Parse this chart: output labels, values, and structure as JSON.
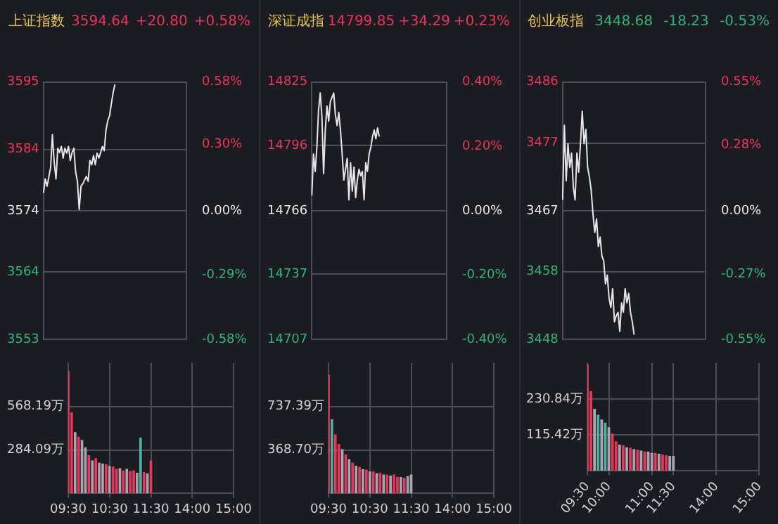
{
  "chart_data": [
    {
      "type": "line",
      "title": "上证指数",
      "annotations": [
        "3594.64",
        "+20.80",
        "+0.58%"
      ],
      "categories": [
        null,
        null,
        null,
        null,
        null,
        null,
        null,
        null,
        null,
        null,
        null,
        null,
        null,
        null,
        null,
        null,
        null,
        null,
        null,
        null,
        null,
        null,
        null,
        null,
        null,
        null,
        null,
        null,
        null,
        null,
        null,
        null,
        null,
        null,
        null,
        null,
        null,
        null,
        null,
        null,
        null,
        null,
        null,
        null,
        null,
        null,
        null,
        null,
        null,
        null,
        null,
        null,
        null,
        null,
        null,
        null,
        null,
        null,
        null,
        null,
        null,
        null,
        null,
        null,
        null,
        null,
        null,
        null,
        null,
        null,
        null,
        null,
        null,
        null,
        null,
        null,
        null,
        null,
        null,
        null,
        null
      ],
      "series": [
        {
          "color": "#e6e6e6",
          "values": [
            3576.9,
            3579.2,
            3578.0,
            3579.5,
            3581.1,
            3586.4,
            3581.9,
            3579.2,
            3584.2,
            3583.5,
            3584.5,
            3582.6,
            3584.2,
            3583.4,
            3584.5,
            3582.2,
            3583.5,
            3584.2,
            3580.3,
            3578.8,
            3574.2,
            3578.0,
            3578.4,
            3579.0,
            3579.6,
            3578.8,
            3582.2,
            3581.5,
            3583.0,
            3581.5,
            3583.4,
            3582.6,
            3583.5,
            3584.5,
            3583.8,
            3587.2,
            3588.7,
            3589.5,
            3591.5,
            3593.3,
            3594.6,
            null,
            null,
            null,
            null,
            null,
            null,
            null,
            null,
            null,
            null,
            null,
            null,
            null,
            null,
            null,
            null,
            null,
            null,
            null,
            null,
            null,
            null,
            null,
            null,
            null,
            null,
            null,
            null,
            null,
            null,
            null,
            null,
            null,
            null,
            null,
            null,
            null,
            null,
            null,
            null
          ]
        }
      ],
      "ylim": [
        3553,
        3595
      ],
      "yticks": [
        3553,
        3564,
        3574,
        3584,
        3595
      ],
      "y2lim": [
        -0.58,
        0.58
      ],
      "y2ticks": [
        {
          "value": -0.58,
          "label": "-0.58%"
        },
        {
          "value": -0.29,
          "label": "-0.29%"
        },
        {
          "value": 0,
          "label": "0.00%"
        },
        {
          "value": 0.3,
          "label": "0.30%"
        },
        {
          "value": 0.58,
          "label": "0.58%"
        }
      ],
      "grid": "y",
      "tick_labels": "y",
      "marker": "none"
    },
    {
      "type": "line",
      "title": "深证成指",
      "annotations": [
        "14799.85",
        "+34.29",
        "+0.23%"
      ],
      "categories": [
        null,
        null,
        null,
        null,
        null,
        null,
        null,
        null,
        null,
        null,
        null,
        null,
        null,
        null,
        null,
        null,
        null,
        null,
        null,
        null,
        null,
        null,
        null,
        null,
        null,
        null,
        null,
        null,
        null,
        null,
        null,
        null,
        null,
        null,
        null,
        null,
        null,
        null,
        null,
        null,
        null,
        null,
        null,
        null,
        null,
        null,
        null,
        null,
        null,
        null,
        null,
        null,
        null,
        null,
        null,
        null,
        null,
        null,
        null,
        null,
        null,
        null,
        null,
        null,
        null,
        null,
        null,
        null,
        null,
        null,
        null,
        null,
        null,
        null,
        null,
        null,
        null,
        null,
        null,
        null,
        null
      ],
      "series": [
        {
          "color": "#e6e6e6",
          "values": [
            14773,
            14792,
            14784,
            14795,
            14812,
            14820,
            14809,
            14783,
            14803,
            14814,
            14807,
            14816,
            14818,
            14820,
            14810,
            14805,
            14811,
            14803,
            14792,
            14780,
            14785,
            14790,
            14771,
            14788,
            14775,
            14786,
            14772,
            14780,
            14785,
            14782,
            14784,
            14771,
            14788,
            14784,
            14792,
            14795,
            14800,
            14803,
            14799,
            14804,
            14800,
            null,
            null,
            null,
            null,
            null,
            null,
            null,
            null,
            null,
            null,
            null,
            null,
            null,
            null,
            null,
            null,
            null,
            null,
            null,
            null,
            null,
            null,
            null,
            null,
            null,
            null,
            null,
            null,
            null,
            null,
            null,
            null,
            null,
            null,
            null,
            null,
            null,
            null,
            null,
            null
          ]
        }
      ],
      "ylim": [
        14707,
        14825
      ],
      "yticks": [
        14707,
        14737,
        14766,
        14796,
        14825
      ],
      "y2lim": [
        -0.4,
        0.4
      ],
      "y2ticks": [
        {
          "value": -0.4,
          "label": "-0.40%"
        },
        {
          "value": -0.2,
          "label": "-0.20%"
        },
        {
          "value": 0,
          "label": "0.00%"
        },
        {
          "value": 0.2,
          "label": "0.20%"
        },
        {
          "value": 0.4,
          "label": "0.40%"
        }
      ],
      "grid": "y",
      "tick_labels": "y",
      "marker": "none"
    },
    {
      "type": "line",
      "title": "创业板指",
      "annotations": [
        "3448.68",
        "-18.23",
        "-0.53%"
      ],
      "categories": [
        null,
        null,
        null,
        null,
        null,
        null,
        null,
        null,
        null,
        null,
        null,
        null,
        null,
        null,
        null,
        null,
        null,
        null,
        null,
        null,
        null,
        null,
        null,
        null,
        null,
        null,
        null,
        null,
        null,
        null,
        null,
        null,
        null,
        null,
        null,
        null,
        null,
        null,
        null,
        null,
        null,
        null,
        null,
        null,
        null,
        null,
        null,
        null,
        null,
        null,
        null,
        null,
        null,
        null,
        null,
        null,
        null,
        null,
        null,
        null,
        null,
        null,
        null,
        null,
        null,
        null,
        null,
        null,
        null,
        null,
        null,
        null,
        null,
        null,
        null,
        null,
        null,
        null,
        null,
        null,
        null
      ],
      "series": [
        {
          "color": "#e6e6e6",
          "values": [
            3468.6,
            3479.6,
            3471.4,
            3476.9,
            3473.4,
            3475.5,
            3470.5,
            3468.6,
            3475.5,
            3472.7,
            3476.9,
            3481.7,
            3476.9,
            3479.0,
            3473.4,
            3472.0,
            3470.0,
            3466.5,
            3463.8,
            3465.8,
            3461.7,
            3463.1,
            3460.3,
            3459.6,
            3456.2,
            3457.5,
            3454.1,
            3452.7,
            3455.5,
            3450.6,
            3451.5,
            3452.0,
            3449.2,
            3453.4,
            3452.0,
            3455.5,
            3453.4,
            3454.8,
            3452.0,
            3450.6,
            3448.7,
            null,
            null,
            null,
            null,
            null,
            null,
            null,
            null,
            null,
            null,
            null,
            null,
            null,
            null,
            null,
            null,
            null,
            null,
            null,
            null,
            null,
            null,
            null,
            null,
            null,
            null,
            null,
            null,
            null,
            null,
            null,
            null,
            null,
            null,
            null,
            null,
            null,
            null,
            null,
            null
          ]
        }
      ],
      "ylim": [
        3448,
        3486
      ],
      "yticks": [
        3448,
        3458,
        3467,
        3477,
        3486
      ],
      "y2lim": [
        -0.55,
        0.55
      ],
      "y2ticks": [
        {
          "value": -0.55,
          "label": "-0.55%"
        },
        {
          "value": -0.27,
          "label": "-0.27%"
        },
        {
          "value": 0,
          "label": "0.00%"
        },
        {
          "value": 0.28,
          "label": "0.28%"
        },
        {
          "value": 0.55,
          "label": "0.55%"
        }
      ],
      "grid": "y",
      "tick_labels": "y",
      "marker": "none"
    },
    {
      "type": "bar",
      "categories": [
        "09:30",
        null,
        null,
        null,
        null,
        null,
        null,
        null,
        null,
        null,
        null,
        null,
        "10:30",
        null,
        null,
        null,
        null,
        null,
        null,
        null,
        null,
        null,
        null,
        null,
        "11:30",
        null,
        null,
        null,
        null,
        null,
        null,
        null,
        null,
        null,
        null,
        null,
        "14:00",
        null,
        null,
        null,
        null,
        null,
        null,
        null,
        null,
        null,
        null,
        null,
        "15:00"
      ],
      "values": [
        800,
        530,
        400,
        370,
        350,
        300,
        250,
        215,
        230,
        200,
        195,
        190,
        180,
        175,
        160,
        165,
        150,
        160,
        145,
        150,
        135,
        365,
        140,
        130,
        215,
        null,
        null,
        null,
        null,
        null,
        null,
        null,
        null,
        null,
        null,
        null,
        null,
        null,
        null,
        null,
        null,
        null,
        null,
        null,
        null,
        null,
        null,
        null,
        null
      ],
      "colors": [
        "#e8365a",
        "#e8365a",
        "#a8a4b0",
        "#e8365a",
        "#a8a4b0",
        "#a8a4b0",
        "#e8365a",
        "#a8a4b0",
        "#e8365a",
        "#a8a4b0",
        "#a8a4b0",
        "#e8365a",
        "#a8a4b0",
        "#e8365a",
        "#e8365a",
        "#a8a4b0",
        "#e8365a",
        "#a8a4b0",
        "#e8365a",
        "#e8365a",
        "#a8a4b0",
        "#4fb0a0",
        "#e8365a",
        "#a8a4b0",
        "#e8365a",
        "#a8a4b0",
        "#a8a4b0",
        "#a8a4b0",
        "#a8a4b0",
        "#a8a4b0",
        "#a8a4b0",
        "#a8a4b0",
        "#a8a4b0",
        "#a8a4b0",
        "#a8a4b0",
        "#a8a4b0",
        "#a8a4b0",
        "#a8a4b0",
        "#a8a4b0",
        "#a8a4b0",
        "#a8a4b0",
        "#a8a4b0",
        "#a8a4b0",
        "#a8a4b0",
        "#a8a4b0",
        "#a8a4b0",
        "#a8a4b0",
        "#a8a4b0",
        "#a8a4b0"
      ],
      "ylim": [
        0,
        852.28
      ],
      "yticks": [
        {
          "value": 284.09,
          "label": "284.09万"
        },
        {
          "value": 568.19,
          "label": "568.19万"
        }
      ],
      "grid": true
    },
    {
      "type": "bar",
      "categories": [
        "09:30",
        null,
        null,
        null,
        null,
        null,
        null,
        null,
        null,
        null,
        null,
        null,
        "10:30",
        null,
        null,
        null,
        null,
        null,
        null,
        null,
        null,
        null,
        null,
        null,
        "11:30",
        null,
        null,
        null,
        null,
        null,
        null,
        null,
        null,
        null,
        null,
        null,
        "14:00",
        null,
        null,
        null,
        null,
        null,
        null,
        null,
        null,
        null,
        null,
        null,
        "15:00"
      ],
      "values": [
        1010,
        630,
        500,
        420,
        375,
        330,
        290,
        260,
        235,
        225,
        205,
        200,
        185,
        185,
        170,
        175,
        160,
        160,
        150,
        160,
        140,
        140,
        130,
        145,
        160,
        null,
        null,
        null,
        null,
        null,
        null,
        null,
        null,
        null,
        null,
        null,
        null,
        null,
        null,
        null,
        null,
        null,
        null,
        null,
        null,
        null,
        null,
        null,
        null
      ],
      "colors": [
        "#e8365a",
        "#4fb0a0",
        "#e8365a",
        "#e8365a",
        "#a8a4b0",
        "#e8365a",
        "#a8a4b0",
        "#e8365a",
        "#a8a4b0",
        "#e8365a",
        "#a8a4b0",
        "#e8365a",
        "#a8a4b0",
        "#e8365a",
        "#a8a4b0",
        "#e8365a",
        "#a8a4b0",
        "#e8365a",
        "#a8a4b0",
        "#e8365a",
        "#e8365a",
        "#a8a4b0",
        "#e8365a",
        "#a8a4b0",
        "#a8a4b0",
        "#a8a4b0",
        "#a8a4b0",
        "#a8a4b0",
        "#a8a4b0",
        "#a8a4b0",
        "#a8a4b0",
        "#a8a4b0",
        "#a8a4b0",
        "#a8a4b0",
        "#a8a4b0",
        "#a8a4b0",
        "#a8a4b0",
        "#a8a4b0",
        "#a8a4b0",
        "#a8a4b0",
        "#a8a4b0",
        "#a8a4b0",
        "#a8a4b0",
        "#a8a4b0",
        "#a8a4b0",
        "#a8a4b0",
        "#a8a4b0",
        "#a8a4b0",
        "#a8a4b0"
      ],
      "ylim": [
        0,
        1106.09
      ],
      "yticks": [
        {
          "value": 368.7,
          "label": "368.70万"
        },
        {
          "value": 737.39,
          "label": "737.39万"
        }
      ],
      "grid": true
    },
    {
      "type": "bar",
      "categories": [
        "09:30",
        null,
        null,
        null,
        null,
        null,
        "10:00",
        null,
        null,
        null,
        null,
        null,
        null,
        null,
        null,
        null,
        null,
        null,
        "11:00",
        null,
        null,
        null,
        null,
        null,
        "11:30",
        null,
        null,
        null,
        null,
        null,
        null,
        null,
        null,
        null,
        null,
        null,
        "14:00",
        null,
        null,
        null,
        null,
        null,
        null,
        null,
        null,
        null,
        null,
        null,
        "15:00"
      ],
      "values": [
        343,
        257,
        199,
        180,
        165,
        155,
        140,
        120,
        95,
        84,
        82,
        76,
        74,
        70,
        68,
        65,
        62,
        62,
        58,
        58,
        55,
        52,
        50,
        48,
        48,
        null,
        null,
        null,
        null,
        null,
        null,
        null,
        null,
        null,
        null,
        null,
        null,
        null,
        null,
        null,
        null,
        null,
        null,
        null,
        null,
        null,
        null,
        null,
        null
      ],
      "colors": [
        "#e8365a",
        "#e8365a",
        "#a8a4b0",
        "#4fb0a0",
        "#a8a4b0",
        "#4fb0a0",
        "#a8a4b0",
        "#e8365a",
        "#e8365a",
        "#a8a4b0",
        "#e8365a",
        "#a8a4b0",
        "#e8365a",
        "#a8a4b0",
        "#e8365a",
        "#a8a4b0",
        "#e8365a",
        "#a8a4b0",
        "#a8a4b0",
        "#e8365a",
        "#a8a4b0",
        "#e8365a",
        "#e8365a",
        "#a8a4b0",
        "#a8a4b0",
        "#a8a4b0",
        "#a8a4b0",
        "#a8a4b0",
        "#a8a4b0",
        "#a8a4b0",
        "#a8a4b0",
        "#a8a4b0",
        "#a8a4b0",
        "#a8a4b0",
        "#a8a4b0",
        "#a8a4b0",
        "#a8a4b0",
        "#a8a4b0",
        "#a8a4b0",
        "#a8a4b0",
        "#a8a4b0",
        "#a8a4b0",
        "#a8a4b0",
        "#a8a4b0",
        "#a8a4b0",
        "#a8a4b0",
        "#a8a4b0",
        "#a8a4b0",
        "#a8a4b0"
      ],
      "ylim": [
        0,
        346.26
      ],
      "yticks": [
        {
          "value": 115.42,
          "label": "115.42万"
        },
        {
          "value": 230.84,
          "label": "230.84万"
        }
      ],
      "grid": true
    }
  ]
}
